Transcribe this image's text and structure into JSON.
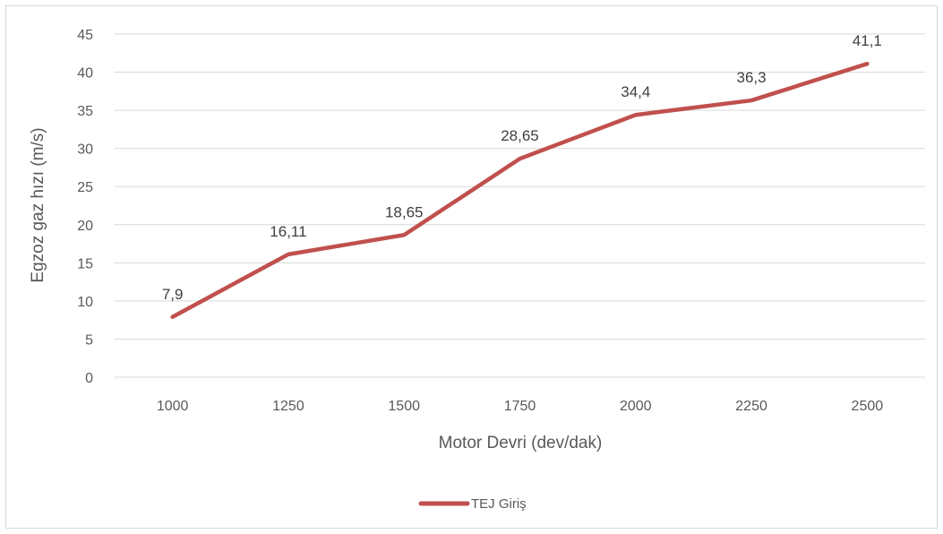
{
  "chart_data": {
    "type": "line",
    "title": "",
    "xlabel": "Motor Devri (dev/dak)",
    "ylabel": "Egzoz gaz hızı (m/s)",
    "categories": [
      "1000",
      "1250",
      "1500",
      "1750",
      "2000",
      "2250",
      "2500"
    ],
    "ylim": [
      0,
      45
    ],
    "yticks": [
      0,
      5,
      10,
      15,
      20,
      25,
      30,
      35,
      40,
      45
    ],
    "grid": true,
    "legend_position": "bottom",
    "series": [
      {
        "name": "TEJ Giriş",
        "color": "#c0504d",
        "values": [
          7.9,
          16.11,
          18.65,
          28.65,
          34.4,
          36.3,
          41.1
        ],
        "labels": [
          "7,9",
          "16,11",
          "18,65",
          "28,65",
          "34,4",
          "36,3",
          "41,1"
        ]
      }
    ]
  }
}
